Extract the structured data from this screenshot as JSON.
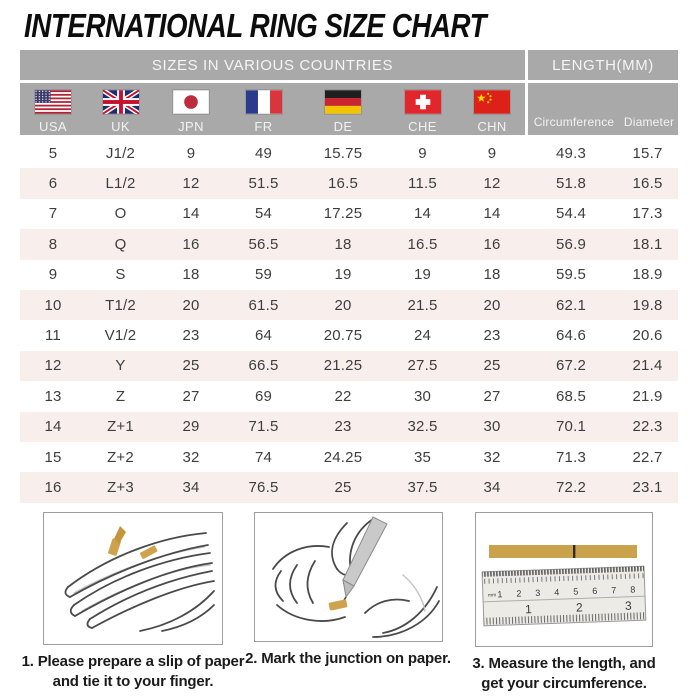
{
  "title": "INTERNATIONAL RING SIZE CHART",
  "chart_data": {
    "type": "table",
    "title": "INTERNATIONAL RING SIZE CHART",
    "column_groups": [
      "SIZES IN VARIOUS COUNTRIES",
      "LENGTH(MM)"
    ],
    "columns": [
      "USA",
      "UK",
      "JPN",
      "FR",
      "DE",
      "CHE",
      "CHN",
      "Circumference",
      "Diameter"
    ],
    "rows": [
      [
        "5",
        "J1/2",
        "9",
        "49",
        "15.75",
        "9",
        "9",
        "49.3",
        "15.7"
      ],
      [
        "6",
        "L1/2",
        "12",
        "51.5",
        "16.5",
        "11.5",
        "12",
        "51.8",
        "16.5"
      ],
      [
        "7",
        "O",
        "14",
        "54",
        "17.25",
        "14",
        "14",
        "54.4",
        "17.3"
      ],
      [
        "8",
        "Q",
        "16",
        "56.5",
        "18",
        "16.5",
        "16",
        "56.9",
        "18.1"
      ],
      [
        "9",
        "S",
        "18",
        "59",
        "19",
        "19",
        "18",
        "59.5",
        "18.9"
      ],
      [
        "10",
        "T1/2",
        "20",
        "61.5",
        "20",
        "21.5",
        "20",
        "62.1",
        "19.8"
      ],
      [
        "11",
        "V1/2",
        "23",
        "64",
        "20.75",
        "24",
        "23",
        "64.6",
        "20.6"
      ],
      [
        "12",
        "Y",
        "25",
        "66.5",
        "21.25",
        "27.5",
        "25",
        "67.2",
        "21.4"
      ],
      [
        "13",
        "Z",
        "27",
        "69",
        "22",
        "30",
        "27",
        "68.5",
        "21.9"
      ],
      [
        "14",
        "Z+1",
        "29",
        "71.5",
        "23",
        "32.5",
        "30",
        "70.1",
        "22.3"
      ],
      [
        "15",
        "Z+2",
        "32",
        "74",
        "24.25",
        "35",
        "32",
        "71.3",
        "22.7"
      ],
      [
        "16",
        "Z+3",
        "34",
        "76.5",
        "25",
        "37.5",
        "34",
        "72.2",
        "23.1"
      ]
    ]
  },
  "flags": [
    {
      "icon": "usa-flag-icon"
    },
    {
      "icon": "uk-flag-icon"
    },
    {
      "icon": "japan-flag-icon"
    },
    {
      "icon": "france-flag-icon"
    },
    {
      "icon": "germany-flag-icon"
    },
    {
      "icon": "switzerland-flag-icon"
    },
    {
      "icon": "china-flag-icon"
    }
  ],
  "steps": [
    {
      "illustration": "hand-with-paper-strip",
      "caption_line1": "1. Please prepare a slip of paper",
      "caption_line2": "and tie it to your finger."
    },
    {
      "illustration": "pen-marking-paper",
      "caption_line1": "2. Mark the junction on paper.",
      "caption_line2": ""
    },
    {
      "illustration": "ruler-measurement",
      "caption_line1": "3. Measure the length, and",
      "caption_line2": "get your circumference."
    }
  ],
  "ruler": {
    "unit_label": "mm",
    "cm_numbers": [
      "1",
      "2",
      "3",
      "4",
      "5",
      "6",
      "7",
      "8"
    ],
    "inch_numbers": [
      "1",
      "2",
      "3"
    ]
  },
  "colors": {
    "header_bg": "#a9a9a9",
    "header_text": "#f4f4f4",
    "row_stripe": "#f8efed",
    "data_text": "#3e3e3e",
    "paper_strip": "#c9a24b",
    "flag_red": "#d8292f"
  }
}
